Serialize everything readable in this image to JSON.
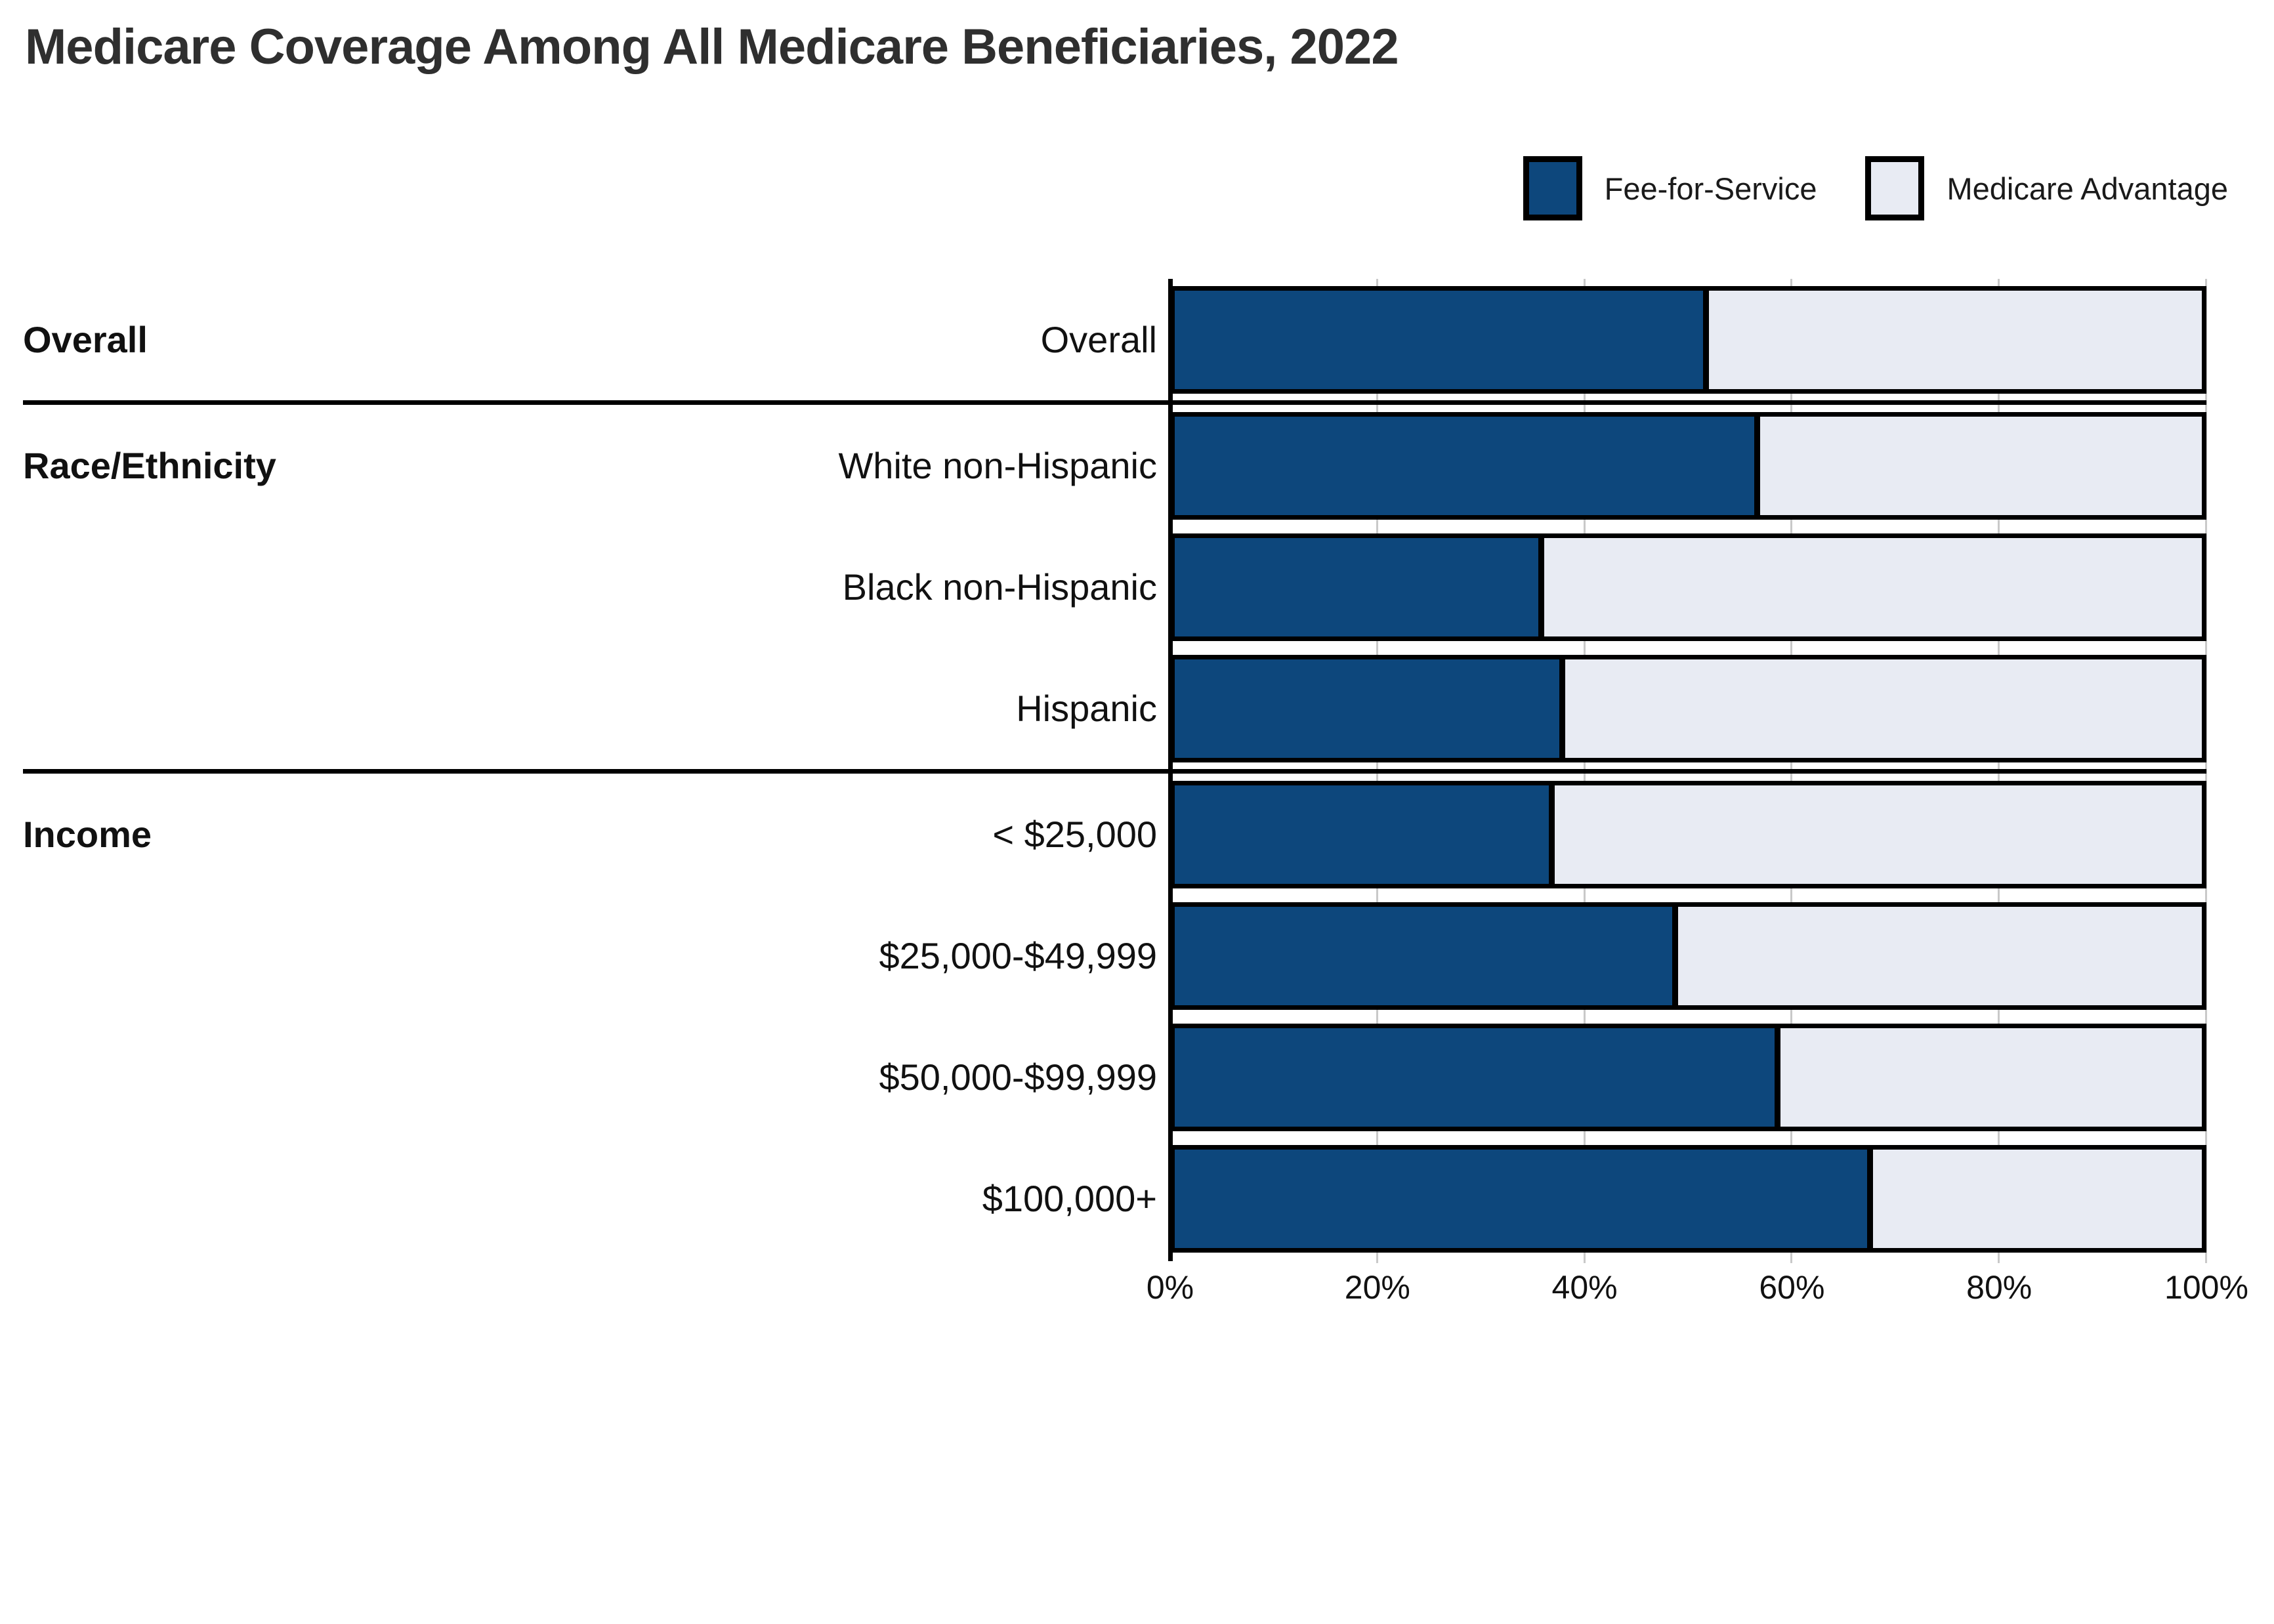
{
  "title": "Medicare Coverage Among All Medicare Beneficiaries, 2022",
  "legend": [
    {
      "label": "Fee-for-Service",
      "color": "#0d477c"
    },
    {
      "label": "Medicare Advantage",
      "color": "#e8ebf3"
    }
  ],
  "colors": {
    "fee_for_service": "#0d477c",
    "medicare_advantage": "#e8ebf3",
    "bar_border": "#000000",
    "gridline": "#c9c9c9",
    "title_text": "#2f2f2f"
  },
  "chart_data": {
    "type": "bar",
    "orientation": "horizontal",
    "stacked": true,
    "title": "Medicare Coverage Among All Medicare Beneficiaries, 2022",
    "xlabel": "",
    "ylabel": "",
    "x_axis": {
      "range": [
        0,
        100
      ],
      "ticks": [
        "0%",
        "20%",
        "40%",
        "60%",
        "80%",
        "100%"
      ],
      "tick_values": [
        0,
        20,
        40,
        60,
        80,
        100
      ]
    },
    "legend_position": "top-right",
    "grid": true,
    "categories": [
      "Overall",
      "White non-Hispanic",
      "Black non-Hispanic",
      "Hispanic",
      "< $25,000",
      "$25,000-$49,999",
      "$50,000-$99,999",
      "$100,000+"
    ],
    "series": [
      {
        "name": "Fee-for-Service",
        "values": [
          52,
          57,
          36,
          38,
          37,
          49,
          59,
          68
        ]
      },
      {
        "name": "Medicare Advantage",
        "values": [
          48,
          43,
          64,
          62,
          63,
          51,
          41,
          32
        ]
      }
    ],
    "row_groups": [
      {
        "label": "Overall",
        "count": 1
      },
      {
        "label": "Race/Ethnicity",
        "count": 3
      },
      {
        "label": "Income",
        "count": 4
      }
    ]
  }
}
